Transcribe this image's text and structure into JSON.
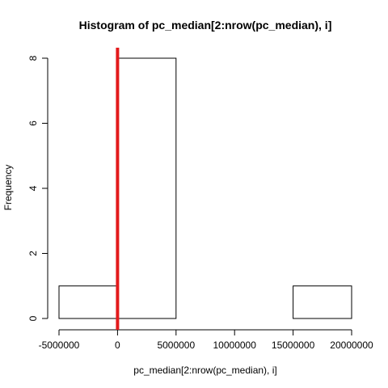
{
  "chart_data": {
    "type": "bar",
    "title": "Histogram of pc_median[2:nrow(pc_median), i]",
    "xlabel": "pc_median[2:nrow(pc_median), i]",
    "ylabel": "Frequency",
    "bins": [
      {
        "start": -5000000,
        "end": 0,
        "count": 1
      },
      {
        "start": 0,
        "end": 5000000,
        "count": 8
      },
      {
        "start": 5000000,
        "end": 10000000,
        "count": 0
      },
      {
        "start": 10000000,
        "end": 15000000,
        "count": 0
      },
      {
        "start": 15000000,
        "end": 20000000,
        "count": 1
      }
    ],
    "xlim": [
      -5000000,
      20000000
    ],
    "ylim": [
      0,
      8
    ],
    "x_ticks": [
      -5000000,
      0,
      5000000,
      10000000,
      15000000,
      20000000
    ],
    "x_tick_labels": [
      "-5000000",
      "0",
      "5000000",
      "10000000",
      "15000000",
      "20000000"
    ],
    "y_ticks": [
      0,
      2,
      4,
      6,
      8
    ],
    "y_tick_labels": [
      "0",
      "2",
      "4",
      "6",
      "8"
    ],
    "reference_line": {
      "x": 0,
      "color": "#e31a1c"
    },
    "bar_fill": "#ffffff",
    "bar_stroke": "#000000",
    "grid": false,
    "legend": "none"
  }
}
